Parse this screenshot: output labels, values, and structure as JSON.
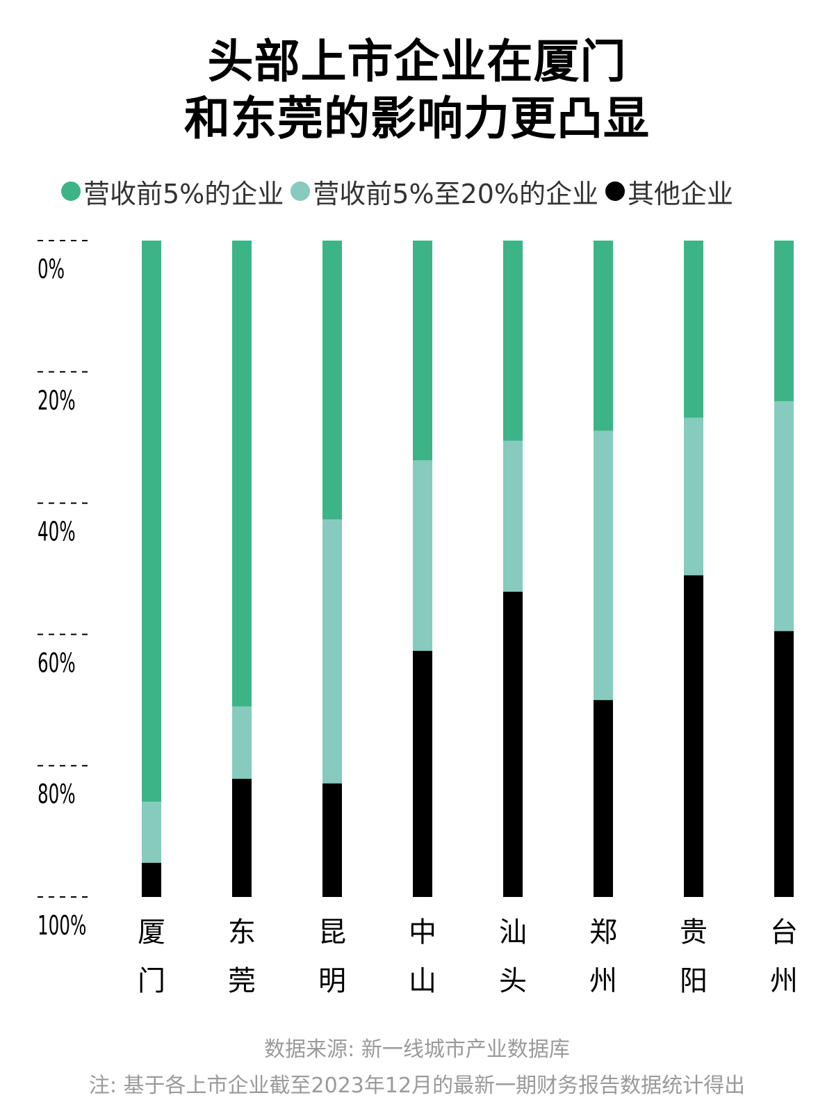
{
  "title_lines": [
    "头部上市企业在厦门",
    "和东莞的影响力更凸显"
  ],
  "chart_data": {
    "type": "bar",
    "stacked": true,
    "orientation": "vertical",
    "yaxis_inverted": true,
    "ylim": [
      0,
      100
    ],
    "yticks": [
      0,
      20,
      40,
      60,
      80,
      100
    ],
    "ytick_labels": [
      "0%",
      "20%",
      "40%",
      "60%",
      "80%",
      "100%"
    ],
    "categories": [
      "厦门",
      "东莞",
      "昆明",
      "中山",
      "汕头",
      "郑州",
      "贵阳",
      "台州"
    ],
    "series": [
      {
        "name": "营收前5%的企业",
        "color": "#3db488",
        "values": [
          85.5,
          71,
          42.5,
          33.5,
          30.5,
          29,
          27,
          24.5
        ]
      },
      {
        "name": "营收前5%至20%的企业",
        "color": "#86cbbd",
        "values": [
          9.3,
          11,
          40.2,
          29,
          23,
          41,
          24,
          35
        ]
      },
      {
        "name": "其他企业",
        "color": "#000000",
        "values": [
          5.2,
          18,
          17.3,
          37.5,
          46.5,
          30,
          49,
          40.5
        ]
      }
    ],
    "legend_position": "top-left",
    "grid": false
  },
  "footer": {
    "source": "数据来源: 新一线城市产业数据库",
    "note": "注: 基于各上市企业截至2023年12月的最新一期财务报告数据统计得出"
  }
}
